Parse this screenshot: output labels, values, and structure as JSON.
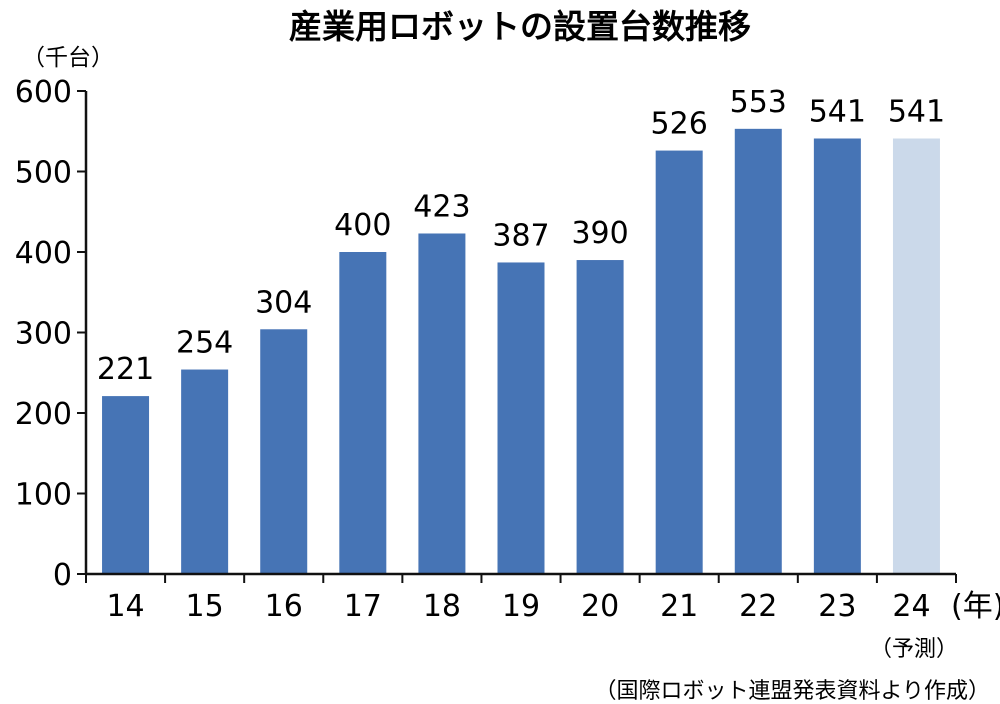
{
  "chart_data": {
    "type": "bar",
    "title": "産業用ロボットの設置台数推移",
    "ylabel": "（千台）",
    "xlabel": "(年)",
    "categories": [
      "14",
      "15",
      "16",
      "17",
      "18",
      "19",
      "20",
      "21",
      "22",
      "23",
      "24"
    ],
    "values": [
      221,
      254,
      304,
      400,
      423,
      387,
      390,
      526,
      553,
      541,
      541
    ],
    "forecast_note": "（予測）",
    "ylim": [
      0,
      600
    ],
    "yticks": [
      0,
      100,
      200,
      300,
      400,
      500,
      600
    ],
    "grid": false,
    "colors": {
      "actual": "#4674b5",
      "forecast": "#cbd9ea",
      "axis": "#111111"
    },
    "source": "（国際ロボット連盟発表資料より作成）"
  }
}
